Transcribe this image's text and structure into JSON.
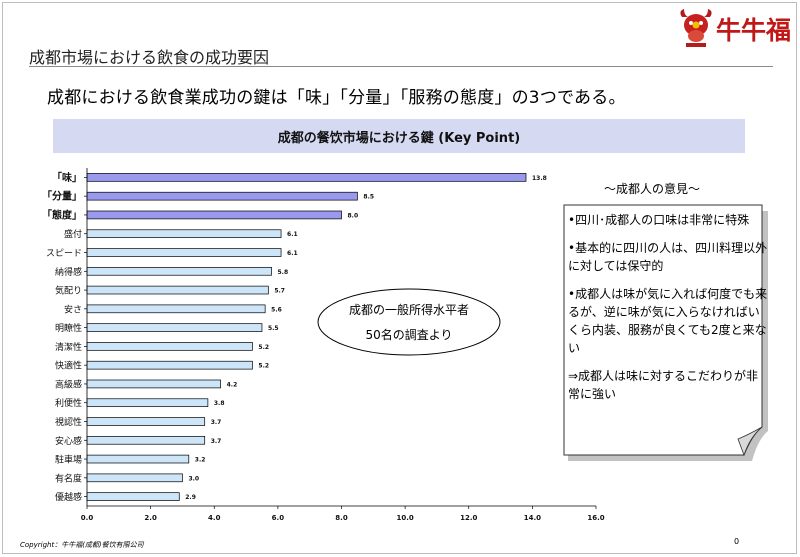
{
  "header": {
    "section_title": "成都市場における飲食の成功要因",
    "headline": "成都における飲食業成功の鍵は「味」「分量」「服務の態度」の3つである。",
    "logo_text": "牛牛福"
  },
  "colors": {
    "key_bar": "#9999ee",
    "other_bar": "#cde5f8",
    "banner": "#d6d9f2"
  },
  "chart_data": {
    "type": "bar",
    "orientation": "horizontal",
    "title": "成都の餐饮市場における鍵 (Key Point)",
    "categories": [
      "「味」",
      "「分量」",
      "「態度」",
      "盛付",
      "スピード",
      "納得感",
      "気配り",
      "安さ",
      "明瞭性",
      "清潔性",
      "快適性",
      "高級感",
      "利便性",
      "視認性",
      "安心感",
      "駐車場",
      "有名度",
      "優越感"
    ],
    "values": [
      13.8,
      8.5,
      8.0,
      6.1,
      6.1,
      5.8,
      5.7,
      5.6,
      5.5,
      5.2,
      5.2,
      4.2,
      3.8,
      3.7,
      3.7,
      3.2,
      3.0,
      2.9
    ],
    "value_labels": [
      "13.8",
      "8.5",
      "8.0",
      "6.1",
      "6.1",
      "5.8",
      "5.7",
      "5.6",
      "5.5",
      "5.2",
      "5.2",
      "4.2",
      "3.8",
      "3.7",
      "3.7",
      "3.2",
      "3.0",
      "2.9"
    ],
    "highlighted": [
      "「味」",
      "「分量」",
      "「態度」"
    ],
    "xlim": [
      0,
      16
    ],
    "x_ticks": [
      "0.0",
      "2.0",
      "4.0",
      "6.0",
      "8.0",
      "10.0",
      "12.0",
      "14.0",
      "16.0"
    ],
    "grid": false
  },
  "survey_note": {
    "line1": "成都の一般所得水平者",
    "line2": "50名の調査より"
  },
  "opinions": {
    "title": "～成都人の意見～",
    "items": [
      "•四川･成都人の口味は非常に特殊",
      "•基本的に四川の人は、四川料理以外に対しては保守的",
      "•成都人は味が気に入れば何度でも来るが、逆に味が気に入らなければいくら内装、服務が良くても2度と来ない",
      "⇒成都人は味に対するこだわりが非常に強い"
    ]
  },
  "footer": {
    "copyright": "Copyright：牛牛福(成都)餐饮有限公司",
    "page": "0"
  }
}
